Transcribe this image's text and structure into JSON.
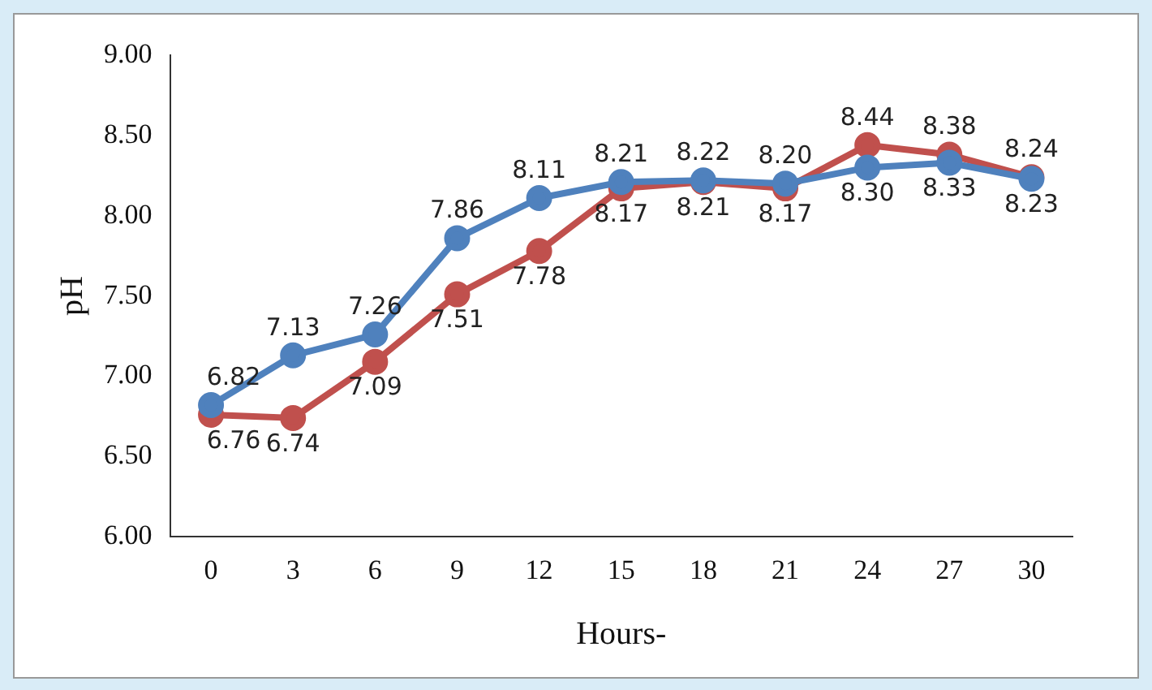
{
  "chart_data": {
    "type": "line",
    "xlabel": "Hours-",
    "ylabel": "pH",
    "categories": [
      "0",
      "3",
      "6",
      "9",
      "12",
      "15",
      "18",
      "21",
      "24",
      "27",
      "30"
    ],
    "series": [
      {
        "color": "#4f81bd",
        "values": [
          6.82,
          7.13,
          7.26,
          7.86,
          8.11,
          8.21,
          8.22,
          8.2,
          8.3,
          8.33,
          8.23
        ],
        "value_labels": [
          "6.82",
          "7.13",
          "7.26",
          "7.86",
          "8.11",
          "8.21",
          "8.22",
          "8.20",
          "8.30",
          "8.33",
          "8.23"
        ]
      },
      {
        "color": "#c0504d",
        "values": [
          6.76,
          6.74,
          7.09,
          7.51,
          7.78,
          8.17,
          8.21,
          8.17,
          8.44,
          8.38,
          8.24
        ],
        "value_labels": [
          "6.76",
          "6.74",
          "7.09",
          "7.51",
          "7.78",
          "8.17",
          "8.21",
          "8.17",
          "8.44",
          "8.38",
          "8.24"
        ]
      }
    ],
    "ylim": [
      6,
      9
    ],
    "yticks": [
      {
        "value": 6,
        "label": "6.00"
      },
      {
        "value": 6.5,
        "label": "6.50"
      },
      {
        "value": 7,
        "label": "7.00"
      },
      {
        "value": 7.5,
        "label": "7.50"
      },
      {
        "value": 8,
        "label": "8.00"
      },
      {
        "value": 8.5,
        "label": "8.50"
      },
      {
        "value": 9,
        "label": "9.00"
      }
    ],
    "marker": "circle",
    "line_style": "solid",
    "grid": false,
    "legend": false
  }
}
